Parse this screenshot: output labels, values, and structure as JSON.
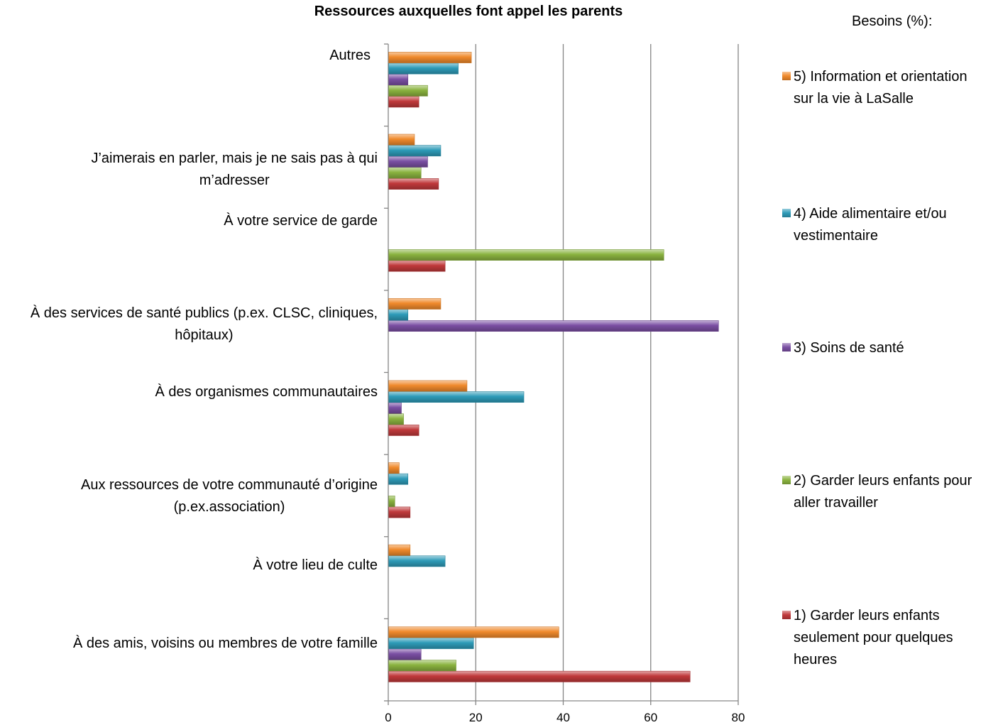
{
  "chart_data": {
    "type": "bar",
    "orientation": "horizontal",
    "title": "Ressources auxquelles font appel les parents",
    "legend_title": "Besoins (%):",
    "legend_position": "right",
    "grid": "vertical major gridlines",
    "xlim": [
      0,
      80
    ],
    "x_ticks": [
      "0",
      "20",
      "40",
      "60",
      "80"
    ],
    "categories": [
      "À des amis, voisins ou membres de votre famille",
      "À votre lieu de culte",
      "Aux  ressources de votre communauté d’origine (p.ex.association)",
      "À des organismes communautaires",
      "À des services de santé publics (p.ex. CLSC, cliniques, hôpitaux)",
      "À votre service de garde",
      "J’aimerais en parler, mais je ne sais pas à qui m’adresser",
      "Autres"
    ],
    "category_lines": [
      [
        "À des amis, voisins ou membres de votre famille"
      ],
      [
        "À votre lieu de culte"
      ],
      [
        "Aux  ressources de votre communauté d’origine",
        "(p.ex.association)"
      ],
      [
        "À des organismes communautaires"
      ],
      [
        "À des services de santé publics (p.ex. CLSC, cliniques,",
        "hôpitaux)"
      ],
      [
        "À votre service de garde"
      ],
      [
        "J’aimerais en parler, mais je ne sais pas à qui",
        "m’adresser"
      ],
      [
        "Autres"
      ]
    ],
    "series": [
      {
        "name": "1) Garder leurs enfants seulement pour quelques heures",
        "legend_lines": [
          "1) Garder leurs enfants",
          "seulement pour quelques",
          "heures"
        ],
        "color": "#c0393b",
        "values": [
          69,
          0,
          5,
          7,
          0,
          13,
          11.5,
          7
        ]
      },
      {
        "name": "2) Garder leurs enfants pour aller travailler",
        "legend_lines": [
          "2) Garder leurs enfants pour",
          "aller travailler"
        ],
        "color": "#8ab33f",
        "values": [
          15.5,
          0,
          1.5,
          3.5,
          0,
          63,
          7.5,
          9
        ]
      },
      {
        "name": "3) Soins de santé",
        "legend_lines": [
          "3) Soins de santé"
        ],
        "color": "#7a4fa3",
        "values": [
          7.5,
          0,
          0,
          3,
          75.5,
          0,
          9,
          4.5
        ]
      },
      {
        "name": "4) Aide alimentaire et/ou vestimentaire",
        "legend_lines": [
          "4) Aide alimentaire et/ou",
          "vestimentaire"
        ],
        "color": "#2e9bb8",
        "values": [
          19.5,
          13,
          4.5,
          31,
          4.5,
          0,
          12,
          16
        ]
      },
      {
        "name": "5) Information et orientation sur la vie à LaSalle",
        "legend_lines": [
          "5) Information et orientation",
          "sur la vie à LaSalle"
        ],
        "color": "#f08a2c",
        "values": [
          39,
          5,
          2.5,
          18,
          12,
          0,
          6,
          19
        ]
      }
    ]
  }
}
